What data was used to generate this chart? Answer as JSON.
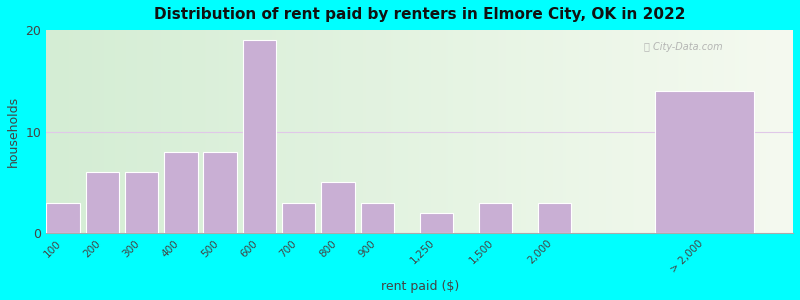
{
  "title": "Distribution of rent paid by renters in Elmore City, OK in 2022",
  "xlabel": "rent paid ($)",
  "ylabel": "households",
  "background_color": "#00FFFF",
  "bar_color": "#c9afd4",
  "ylim": [
    0,
    20
  ],
  "yticks": [
    0,
    10,
    20
  ],
  "bar_positions": [
    0,
    1,
    2,
    3,
    4,
    5,
    6,
    7,
    8,
    9.5,
    11,
    12.5,
    15.5
  ],
  "bar_heights": [
    3,
    6,
    6,
    8,
    8,
    19,
    3,
    5,
    3,
    2,
    3,
    3,
    14
  ],
  "bar_widths": [
    0.85,
    0.85,
    0.85,
    0.85,
    0.85,
    0.85,
    0.85,
    0.85,
    0.85,
    0.85,
    0.85,
    0.85,
    2.5
  ],
  "tick_labels": [
    "100",
    "200",
    "300",
    "400",
    "500",
    "600",
    "700",
    "800",
    "900",
    "1,250",
    "1,500",
    "2,000",
    "> 2,000"
  ],
  "tick_positions": [
    0.425,
    1.425,
    2.425,
    3.425,
    4.425,
    5.425,
    6.425,
    7.425,
    8.425,
    9.925,
    11.425,
    12.925,
    16.75
  ],
  "xlim": [
    0,
    19
  ],
  "grid_color": "#e0c8e8",
  "bg_left_color": "#d4edd4",
  "bg_right_color": "#f5f5f5"
}
